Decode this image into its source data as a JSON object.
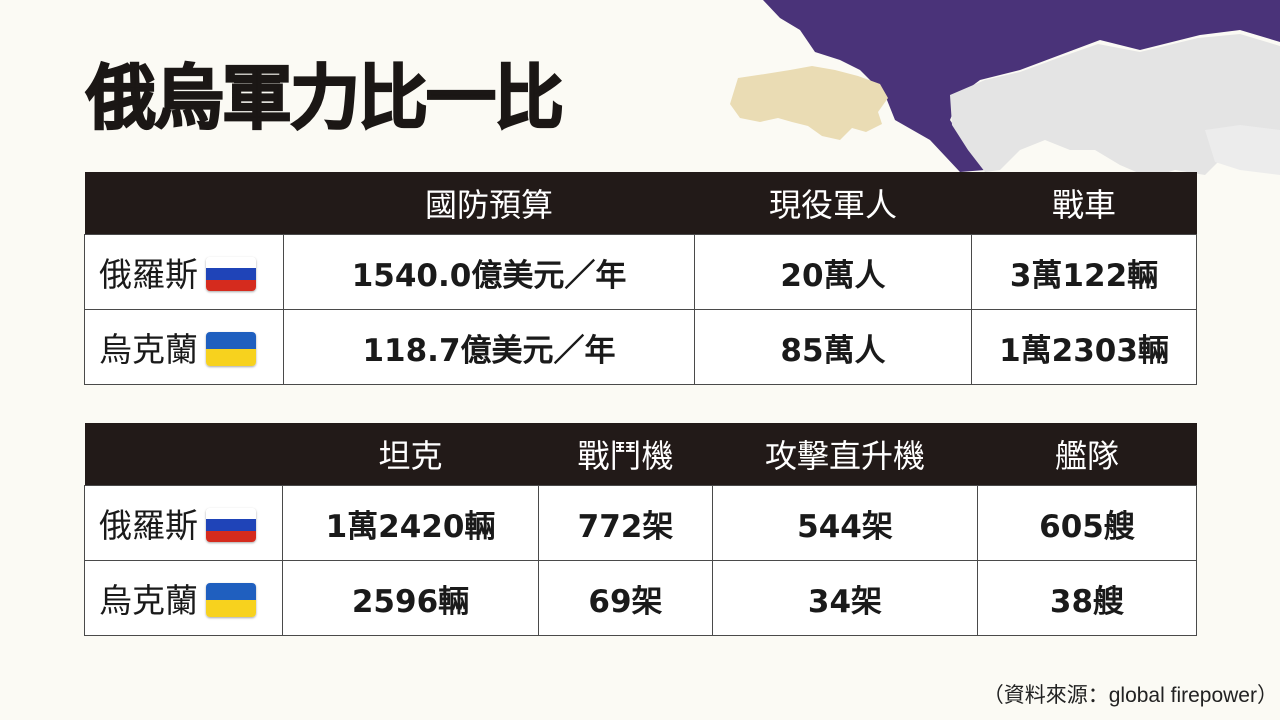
{
  "title": "俄烏軍力比一比",
  "colors": {
    "header_bg": "#221a18",
    "map_russia": "#4a3379",
    "map_ukraine": "#eadcb4",
    "map_other": "#e4e4e4",
    "flag_ru": [
      "#ffffff",
      "#1f44b8",
      "#d52b1e"
    ],
    "flag_ua": [
      "#1f5fbf",
      "#f7d21e"
    ]
  },
  "table1": {
    "headers": [
      "",
      "國防預算",
      "現役軍人",
      "戰車"
    ],
    "rows": [
      {
        "country": "俄羅斯",
        "flag": "russia-flag-icon",
        "cells": [
          "1540.0億美元／年",
          "20萬人",
          "3萬122輛"
        ]
      },
      {
        "country": "烏克蘭",
        "flag": "ukraine-flag-icon",
        "cells": [
          "118.7億美元／年",
          "85萬人",
          "1萬2303輛"
        ]
      }
    ]
  },
  "table2": {
    "headers": [
      "",
      "坦克",
      "戰鬥機",
      "攻擊直升機",
      "艦隊"
    ],
    "rows": [
      {
        "country": "俄羅斯",
        "flag": "russia-flag-icon",
        "cells": [
          "1萬2420輛",
          "772架",
          "544架",
          "605艘"
        ]
      },
      {
        "country": "烏克蘭",
        "flag": "ukraine-flag-icon",
        "cells": [
          "2596輛",
          "69架",
          "34架",
          "38艘"
        ]
      }
    ]
  },
  "source": "（資料來源：global firepower）"
}
